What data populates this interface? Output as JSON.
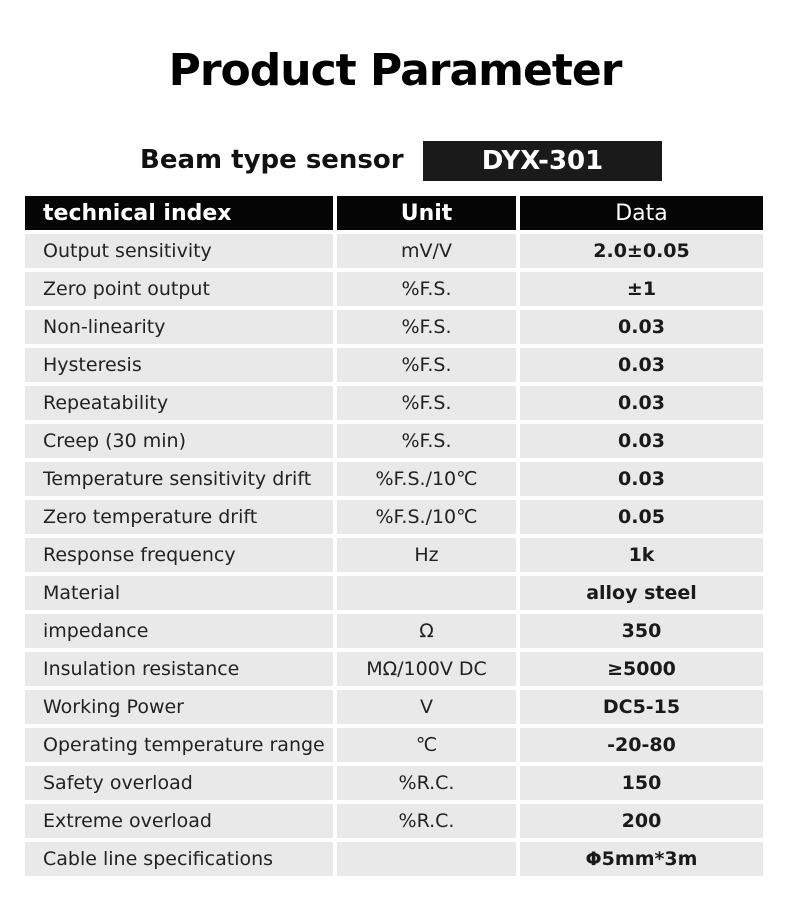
{
  "header": {
    "title": "Product Parameter",
    "product_label": "Beam type sensor",
    "model": "DYX-301"
  },
  "table": {
    "columns": [
      "technical index",
      "Unit",
      "Data"
    ],
    "rows": [
      [
        "Output sensitivity",
        "mV/V",
        "2.0±0.05"
      ],
      [
        "Zero point output",
        "%F.S.",
        "±1"
      ],
      [
        "Non-linearity",
        "%F.S.",
        "0.03"
      ],
      [
        "Hysteresis",
        "%F.S.",
        "0.03"
      ],
      [
        "Repeatability",
        "%F.S.",
        "0.03"
      ],
      [
        "Creep (30 min)",
        "%F.S.",
        "0.03"
      ],
      [
        "Temperature sensitivity drift",
        "%F.S./10℃",
        "0.03"
      ],
      [
        "Zero temperature drift",
        "%F.S./10℃",
        "0.05"
      ],
      [
        "Response frequency",
        "Hz",
        "1k"
      ],
      [
        "Material",
        null,
        "alloy steel"
      ],
      [
        "impedance",
        "Ω",
        "350"
      ],
      [
        "Insulation resistance",
        "MΩ/100V DC",
        "≥5000"
      ],
      [
        "Working Power",
        "V",
        "DC5-15"
      ],
      [
        "Operating temperature range",
        "℃",
        "-20-80"
      ],
      [
        "Safety overload",
        "%R.C.",
        "150"
      ],
      [
        "Extreme overload",
        "%R.C.",
        "200"
      ],
      [
        "Cable line specifications",
        null,
        "Φ5mm*3m"
      ]
    ]
  }
}
